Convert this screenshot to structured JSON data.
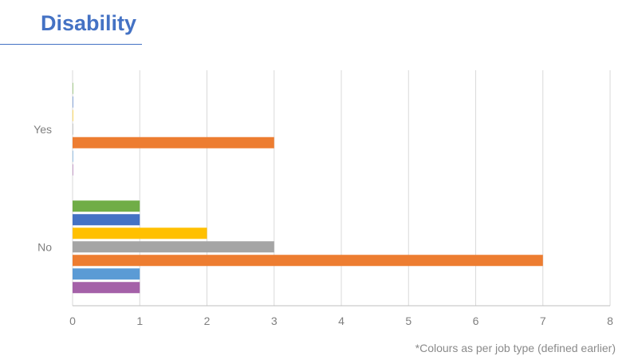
{
  "title": "Disability",
  "footnote": "*Colours as per job type (defined earlier)",
  "chart_data": {
    "type": "bar",
    "orientation": "horizontal",
    "categories": [
      "Yes",
      "No"
    ],
    "xlim": [
      0,
      8
    ],
    "x_ticks": [
      "0",
      "1",
      "2",
      "3",
      "4",
      "5",
      "6",
      "7",
      "8"
    ],
    "grid": true,
    "series": [
      {
        "color": "#70ad47",
        "values": [
          0,
          1
        ]
      },
      {
        "color": "#4472c4",
        "values": [
          0,
          1
        ]
      },
      {
        "color": "#ffc000",
        "values": [
          0,
          2
        ]
      },
      {
        "color": "#a5a5a5",
        "values": [
          0,
          3
        ]
      },
      {
        "color": "#ed7d31",
        "values": [
          3,
          7
        ]
      },
      {
        "color": "#5b9bd5",
        "values": [
          0,
          1
        ]
      },
      {
        "color": "#a461a8",
        "values": [
          0,
          1
        ]
      }
    ]
  }
}
